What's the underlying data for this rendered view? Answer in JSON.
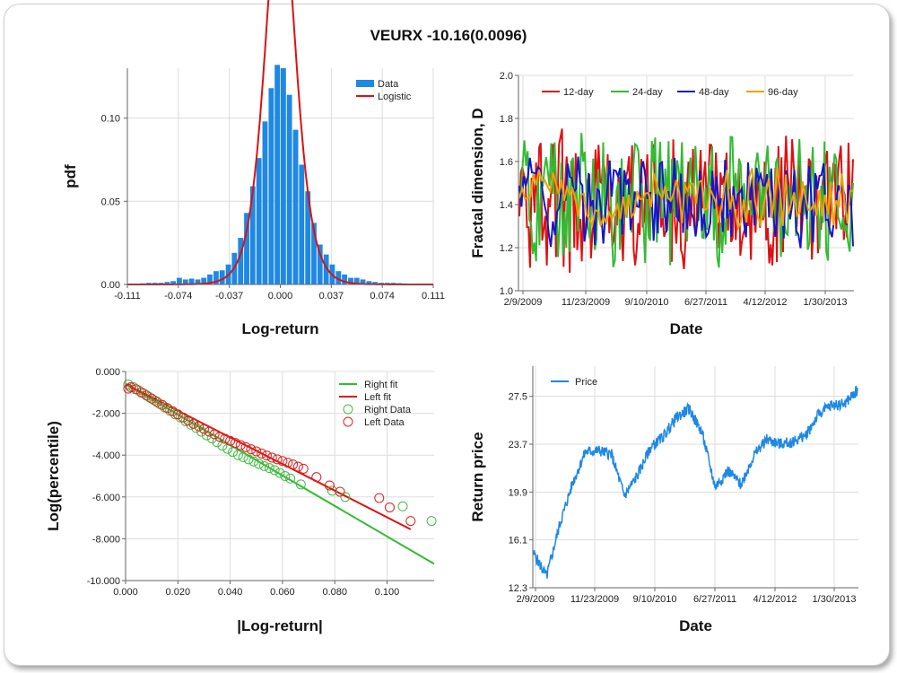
{
  "title": "VEURX -10.16(0.0096)",
  "chart_data": [
    {
      "type": "bar",
      "id": "hist",
      "xlabel": "Log-return",
      "ylabel": "pdf",
      "xlim": [
        -0.111,
        0.111
      ],
      "ylim": [
        0,
        0.13
      ],
      "xticks": [
        "-0.111",
        "-0.074",
        "-0.037",
        "0.000",
        "0.037",
        "0.074",
        "0.111"
      ],
      "yticks": [
        "0.00",
        "0.05",
        "0.10"
      ],
      "legend": [
        "Data",
        "Logistic"
      ],
      "legend_position": "top-right",
      "colors": {
        "bars": "#1e88e5",
        "fit": "#dd1111"
      },
      "bin_width": 0.00444,
      "bins_x": [
        -0.1088,
        -0.1044,
        -0.0999,
        -0.0955,
        -0.091,
        -0.0866,
        -0.0821,
        -0.0777,
        -0.0733,
        -0.0688,
        -0.0644,
        -0.0599,
        -0.0555,
        -0.0511,
        -0.0466,
        -0.0422,
        -0.0377,
        -0.0333,
        -0.0288,
        -0.0244,
        -0.02,
        -0.0155,
        -0.0111,
        -0.0066,
        -0.0022,
        0.0022,
        0.0066,
        0.0111,
        0.0155,
        0.02,
        0.0244,
        0.0288,
        0.0333,
        0.0377,
        0.0422,
        0.0466,
        0.0511,
        0.0555,
        0.0599,
        0.0644,
        0.0688,
        0.0733,
        0.0777,
        0.0821,
        0.0866,
        0.091,
        0.0955,
        0.0999,
        0.1044,
        0.1088
      ],
      "values": [
        0.0005,
        0.0005,
        0.0007,
        0.001,
        0.001,
        0.001,
        0.0015,
        0.002,
        0.004,
        0.003,
        0.0035,
        0.003,
        0.004,
        0.006,
        0.008,
        0.0085,
        0.012,
        0.019,
        0.028,
        0.043,
        0.059,
        0.076,
        0.098,
        0.118,
        0.132,
        0.13,
        0.114,
        0.093,
        0.072,
        0.056,
        0.037,
        0.024,
        0.018,
        0.012,
        0.008,
        0.006,
        0.004,
        0.004,
        0.003,
        0.002,
        0.0015,
        0.001,
        0.001,
        0.001,
        0.0008,
        0.0006,
        0.0005,
        0.0004,
        0.0004,
        0.0004
      ],
      "fit": {
        "mu": 0.0,
        "s": 0.0074
      }
    },
    {
      "type": "line",
      "id": "fractal",
      "xlabel": "Date",
      "ylabel": "Fractal dimension, D",
      "ylim": [
        1.0,
        2.0
      ],
      "xticks": [
        "2/9/2009",
        "11/23/2009",
        "9/10/2010",
        "6/27/2011",
        "4/12/2012",
        "1/30/2013"
      ],
      "yticks": [
        "1.0",
        "1.2",
        "1.4",
        "1.6",
        "1.8",
        "2.0"
      ],
      "legend_position": "top",
      "series": [
        {
          "name": "12-day",
          "color": "#e01010"
        },
        {
          "name": "24-day",
          "color": "#33bb33"
        },
        {
          "name": "48-day",
          "color": "#1515cc"
        },
        {
          "name": "96-day",
          "color": "#f0a000"
        }
      ]
    },
    {
      "type": "scatter",
      "id": "tails",
      "xlabel": "|Log-return|",
      "ylabel": "Log(percentile)",
      "xlim": [
        0.0,
        0.118
      ],
      "ylim": [
        -10.0,
        0.0
      ],
      "xticks": [
        "0.000",
        "0.020",
        "0.040",
        "0.060",
        "0.080",
        "0.100"
      ],
      "yticks": [
        "0.000",
        "-2.000",
        "-4.000",
        "-6.000",
        "-8.000",
        "-10.000"
      ],
      "legend_position": "top-right",
      "series": [
        {
          "name": "Right fit",
          "color": "#33bb33",
          "kind": "line",
          "x": [
            0.0,
            0.118
          ],
          "y": [
            -0.6,
            -9.2
          ]
        },
        {
          "name": "Left fit",
          "color": "#dd1111",
          "kind": "line",
          "x": [
            0.0,
            0.109
          ],
          "y": [
            -0.6,
            -7.55
          ]
        },
        {
          "name": "Right Data",
          "color": "#44bb44",
          "kind": "points",
          "x": [
            0.001,
            0.003,
            0.005,
            0.007,
            0.009,
            0.011,
            0.013,
            0.015,
            0.017,
            0.019,
            0.021,
            0.023,
            0.025,
            0.027,
            0.029,
            0.031,
            0.033,
            0.035,
            0.037,
            0.039,
            0.041,
            0.043,
            0.045,
            0.047,
            0.049,
            0.051,
            0.053,
            0.055,
            0.057,
            0.059,
            0.061,
            0.063,
            0.067,
            0.079,
            0.084,
            0.106,
            0.117
          ],
          "y": [
            -0.62,
            -0.75,
            -0.9,
            -1.05,
            -1.22,
            -1.38,
            -1.55,
            -1.72,
            -1.88,
            -2.05,
            -2.2,
            -2.38,
            -2.55,
            -2.7,
            -2.88,
            -3.05,
            -3.2,
            -3.38,
            -3.55,
            -3.7,
            -3.85,
            -4.0,
            -4.1,
            -4.2,
            -4.3,
            -4.42,
            -4.52,
            -4.62,
            -4.72,
            -4.85,
            -5.0,
            -5.12,
            -5.4,
            -5.7,
            -6.0,
            -6.45,
            -7.15
          ]
        },
        {
          "name": "Left Data",
          "color": "#e02020",
          "kind": "points",
          "x": [
            0.001,
            0.002,
            0.004,
            0.006,
            0.008,
            0.01,
            0.012,
            0.014,
            0.016,
            0.018,
            0.02,
            0.022,
            0.024,
            0.026,
            0.028,
            0.03,
            0.032,
            0.034,
            0.036,
            0.038,
            0.04,
            0.042,
            0.044,
            0.046,
            0.048,
            0.05,
            0.052,
            0.054,
            0.056,
            0.058,
            0.06,
            0.062,
            0.064,
            0.066,
            0.068,
            0.073,
            0.078,
            0.082,
            0.097,
            0.101,
            0.109
          ],
          "y": [
            -0.82,
            -0.75,
            -0.85,
            -1.0,
            -1.15,
            -1.3,
            -1.45,
            -1.6,
            -1.75,
            -1.9,
            -2.05,
            -2.2,
            -2.35,
            -2.5,
            -2.62,
            -2.75,
            -2.88,
            -3.0,
            -3.12,
            -3.22,
            -3.32,
            -3.42,
            -3.52,
            -3.62,
            -3.72,
            -3.82,
            -3.92,
            -4.02,
            -4.12,
            -4.2,
            -4.28,
            -4.36,
            -4.45,
            -4.55,
            -4.65,
            -5.05,
            -5.45,
            -5.75,
            -6.05,
            -6.5,
            -7.15
          ]
        }
      ]
    },
    {
      "type": "line",
      "id": "price",
      "xlabel": "Date",
      "ylabel": "Return price",
      "ylim": [
        12.3,
        29.9
      ],
      "xticks": [
        "2/9/2009",
        "11/23/2009",
        "9/10/2010",
        "6/27/2011",
        "4/12/2012",
        "1/30/2013"
      ],
      "yticks": [
        "12.3",
        "16.1",
        "19.9",
        "23.7",
        "27.5"
      ],
      "legend_position": "top-left",
      "series": [
        {
          "name": "Price",
          "color": "#1e88e5",
          "x_index": [
            0,
            0.04,
            0.08,
            0.12,
            0.16,
            0.2,
            0.24,
            0.28,
            0.32,
            0.36,
            0.4,
            0.44,
            0.48,
            0.52,
            0.56,
            0.6,
            0.64,
            0.68,
            0.72,
            0.76,
            0.8,
            0.84,
            0.88,
            0.92,
            0.96,
            1.0
          ],
          "y": [
            15.0,
            13.2,
            17.3,
            20.6,
            23.1,
            23.2,
            22.9,
            19.6,
            21.2,
            23.4,
            24.3,
            25.8,
            26.5,
            24.6,
            20.3,
            21.6,
            20.5,
            22.8,
            24.1,
            23.7,
            23.9,
            24.4,
            26.1,
            26.8,
            26.9,
            28.0
          ]
        }
      ]
    }
  ]
}
